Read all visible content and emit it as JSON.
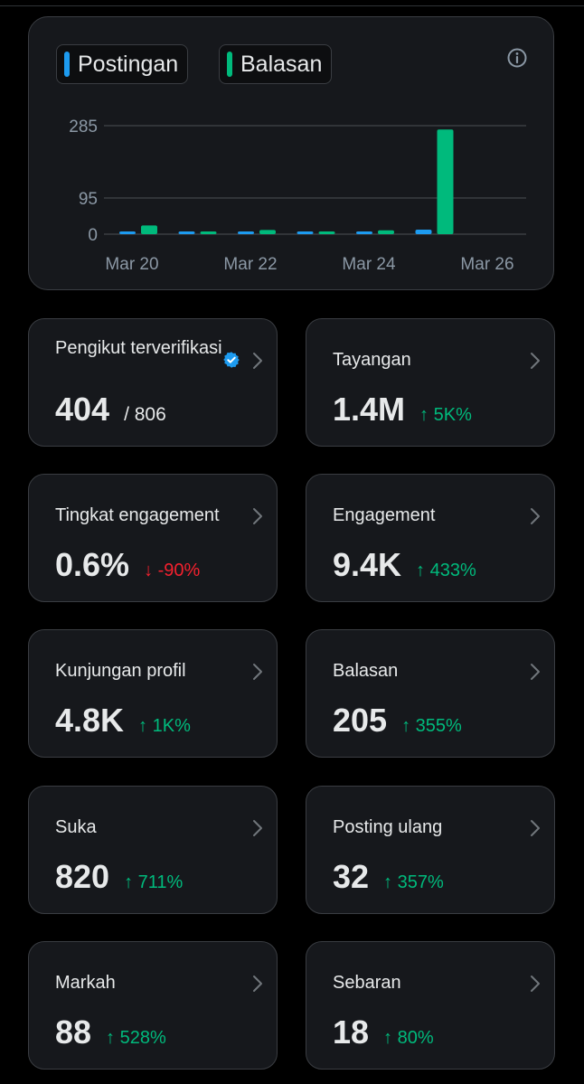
{
  "legend": {
    "posts_label": "Postingan",
    "replies_label": "Balasan"
  },
  "colors": {
    "posts": "#1d9bf0",
    "replies": "#00ba7c",
    "up": "#00ba7c",
    "down": "#f4212e"
  },
  "chart_data": {
    "type": "bar",
    "title": "",
    "x_tick_labels": [
      "Mar 20",
      "Mar 22",
      "Mar 24",
      "Mar 26"
    ],
    "y_ticks": [
      0,
      95,
      285
    ],
    "ylim": [
      0,
      285
    ],
    "categories": [
      "Mar 20",
      "Mar 21",
      "Mar 22",
      "Mar 23",
      "Mar 24",
      "Mar 25"
    ],
    "series": [
      {
        "name": "Postingan",
        "values": [
          1,
          5,
          2,
          0,
          1,
          12
        ]
      },
      {
        "name": "Balasan",
        "values": [
          23,
          4,
          11,
          2,
          10,
          275
        ]
      }
    ]
  },
  "metrics": [
    {
      "label": "Pengikut terverifikasi",
      "value": "404",
      "total": "/ 806",
      "verified": true
    },
    {
      "label": "Tayangan",
      "value": "1.4M",
      "change": "5K%",
      "dir": "up"
    },
    {
      "label": "Tingkat engagement",
      "value": "0.6%",
      "change": "-90%",
      "dir": "down"
    },
    {
      "label": "Engagement",
      "value": "9.4K",
      "change": "433%",
      "dir": "up"
    },
    {
      "label": "Kunjungan profil",
      "value": "4.8K",
      "change": "1K%",
      "dir": "up"
    },
    {
      "label": "Balasan",
      "value": "205",
      "change": "355%",
      "dir": "up"
    },
    {
      "label": "Suka",
      "value": "820",
      "change": "711%",
      "dir": "up"
    },
    {
      "label": "Posting ulang",
      "value": "32",
      "change": "357%",
      "dir": "up"
    },
    {
      "label": "Markah",
      "value": "88",
      "change": "528%",
      "dir": "up"
    },
    {
      "label": "Sebaran",
      "value": "18",
      "change": "80%",
      "dir": "up"
    }
  ]
}
